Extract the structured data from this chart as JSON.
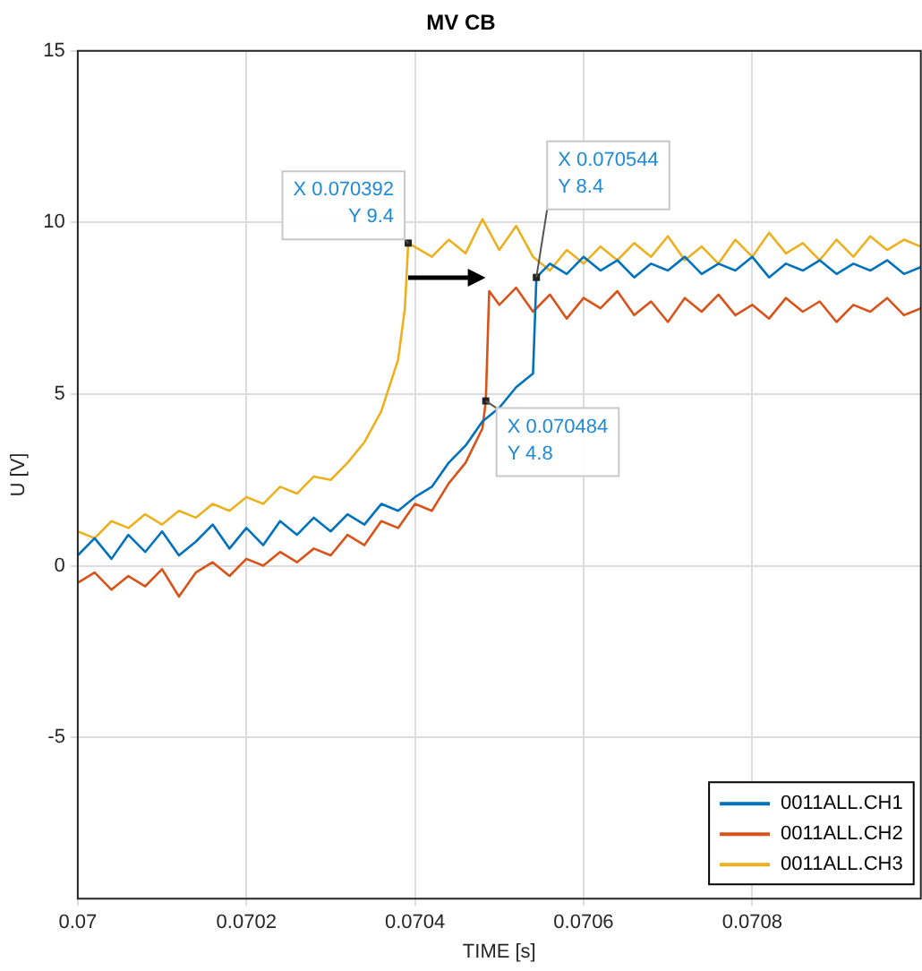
{
  "chart_data": {
    "type": "line",
    "title": "MV CB",
    "xlabel": "TIME [s]",
    "ylabel": "U [V]",
    "xlim": [
      0.07,
      0.071
    ],
    "xticks": [
      0.07,
      0.0702,
      0.0704,
      0.0706,
      0.0708
    ],
    "ylim": [
      -9.7,
      15
    ],
    "yticks": [
      -5,
      0,
      5,
      10,
      15
    ],
    "grid": true,
    "legend": "bottom right",
    "marker": "none",
    "line_style": "solid",
    "series": [
      {
        "name": "0011ALL.CH1",
        "color": "#0072bd",
        "x": [
          0.07,
          0.07002,
          0.07004,
          0.07006,
          0.07008,
          0.0701,
          0.07012,
          0.07014,
          0.07016,
          0.07018,
          0.0702,
          0.07022,
          0.07024,
          0.07026,
          0.07028,
          0.0703,
          0.07032,
          0.07034,
          0.07036,
          0.07038,
          0.0704,
          0.07042,
          0.07044,
          0.07046,
          0.07048,
          0.0705,
          0.07052,
          0.07054,
          0.070544,
          0.07056,
          0.07058,
          0.0706,
          0.07062,
          0.07064,
          0.07066,
          0.07068,
          0.0707,
          0.07072,
          0.07074,
          0.07076,
          0.07078,
          0.0708,
          0.07082,
          0.07084,
          0.07086,
          0.07088,
          0.0709,
          0.07092,
          0.07094,
          0.07096,
          0.07098,
          0.071
        ],
        "values": [
          0.3,
          0.8,
          0.2,
          0.9,
          0.4,
          1.0,
          0.3,
          0.7,
          1.2,
          0.5,
          1.1,
          0.6,
          1.3,
          0.9,
          1.4,
          1.0,
          1.5,
          1.2,
          1.8,
          1.6,
          2.0,
          2.3,
          3.0,
          3.5,
          4.2,
          4.6,
          5.2,
          5.6,
          8.4,
          8.8,
          8.5,
          9.0,
          8.6,
          8.9,
          8.4,
          8.8,
          8.6,
          9.0,
          8.5,
          8.8,
          8.6,
          9.0,
          8.4,
          8.8,
          8.6,
          8.9,
          8.5,
          8.8,
          8.6,
          8.9,
          8.5,
          8.7
        ]
      },
      {
        "name": "0011ALL.CH2",
        "color": "#d95319",
        "x": [
          0.07,
          0.07002,
          0.07004,
          0.07006,
          0.07008,
          0.0701,
          0.07012,
          0.07014,
          0.07016,
          0.07018,
          0.0702,
          0.07022,
          0.07024,
          0.07026,
          0.07028,
          0.0703,
          0.07032,
          0.07034,
          0.07036,
          0.07038,
          0.0704,
          0.07042,
          0.07044,
          0.07046,
          0.07048,
          0.070484,
          0.070488,
          0.0705,
          0.07052,
          0.07054,
          0.07056,
          0.07058,
          0.0706,
          0.07062,
          0.07064,
          0.07066,
          0.07068,
          0.0707,
          0.07072,
          0.07074,
          0.07076,
          0.07078,
          0.0708,
          0.07082,
          0.07084,
          0.07086,
          0.07088,
          0.0709,
          0.07092,
          0.07094,
          0.07096,
          0.07098,
          0.071
        ],
        "values": [
          -0.5,
          -0.2,
          -0.7,
          -0.3,
          -0.6,
          -0.1,
          -0.9,
          -0.2,
          0.1,
          -0.3,
          0.2,
          0.0,
          0.4,
          0.1,
          0.5,
          0.3,
          0.9,
          0.6,
          1.3,
          1.1,
          1.8,
          1.6,
          2.4,
          3.0,
          4.0,
          4.8,
          8.0,
          7.6,
          8.1,
          7.4,
          7.9,
          7.2,
          7.8,
          7.5,
          8.0,
          7.3,
          7.7,
          7.1,
          7.8,
          7.4,
          7.9,
          7.3,
          7.6,
          7.2,
          7.8,
          7.4,
          7.7,
          7.1,
          7.6,
          7.4,
          7.8,
          7.3,
          7.5
        ]
      },
      {
        "name": "0011ALL.CH3",
        "color": "#edb120",
        "x": [
          0.07,
          0.07002,
          0.07004,
          0.07006,
          0.07008,
          0.0701,
          0.07012,
          0.07014,
          0.07016,
          0.07018,
          0.0702,
          0.07022,
          0.07024,
          0.07026,
          0.07028,
          0.0703,
          0.07032,
          0.07034,
          0.07036,
          0.07038,
          0.070388,
          0.070392,
          0.07042,
          0.07044,
          0.07046,
          0.07048,
          0.0705,
          0.07052,
          0.07054,
          0.07056,
          0.07058,
          0.0706,
          0.07062,
          0.07064,
          0.07066,
          0.07068,
          0.0707,
          0.07072,
          0.07074,
          0.07076,
          0.07078,
          0.0708,
          0.07082,
          0.07084,
          0.07086,
          0.07088,
          0.0709,
          0.07092,
          0.07094,
          0.07096,
          0.07098,
          0.071
        ],
        "values": [
          1.0,
          0.8,
          1.3,
          1.1,
          1.5,
          1.2,
          1.6,
          1.4,
          1.8,
          1.6,
          2.0,
          1.8,
          2.3,
          2.1,
          2.6,
          2.5,
          3.0,
          3.6,
          4.5,
          6.0,
          7.5,
          9.4,
          9.0,
          9.5,
          9.1,
          10.1,
          9.2,
          9.9,
          9.0,
          8.6,
          9.2,
          8.8,
          9.3,
          8.9,
          9.4,
          9.0,
          9.6,
          8.9,
          9.3,
          8.8,
          9.5,
          9.0,
          9.7,
          9.1,
          9.4,
          8.9,
          9.5,
          9.0,
          9.6,
          9.2,
          9.5,
          9.3
        ]
      }
    ],
    "annotations": [
      {
        "text": "X 0.070392\nY 9.4",
        "x": 0.070392,
        "y": 9.4
      },
      {
        "text": "X 0.070544\nY 8.4",
        "x": 0.070544,
        "y": 8.4
      },
      {
        "text": "X 0.070484\nY 4.8",
        "x": 0.070484,
        "y": 4.8
      }
    ]
  }
}
